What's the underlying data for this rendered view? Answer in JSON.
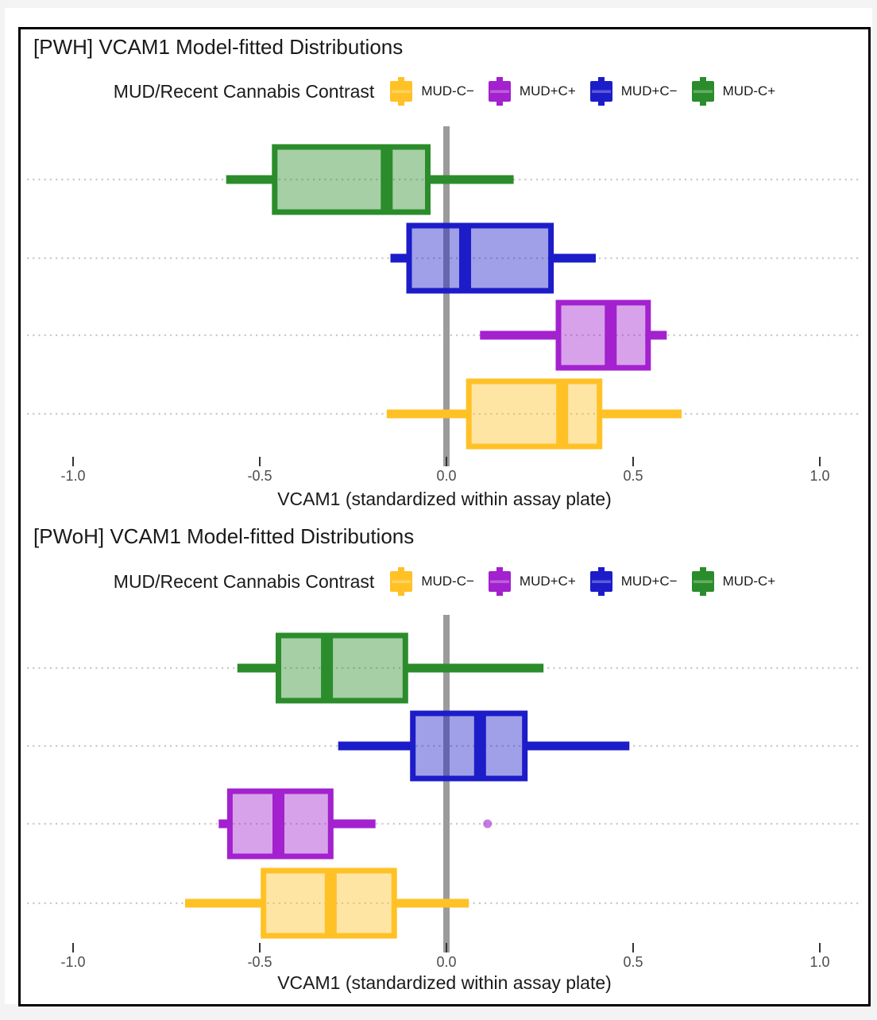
{
  "page": {
    "background": "#f3f3f3"
  },
  "figure": {
    "border_color": "#000000",
    "background": "#ffffff"
  },
  "colors": {
    "gold": {
      "stroke": "#FFC125",
      "fill": "#FFE08A"
    },
    "purple": {
      "stroke": "#A321CE",
      "fill": "#CD85E3"
    },
    "blue": {
      "stroke": "#1C1CC9",
      "fill": "#8787E3"
    },
    "green": {
      "stroke": "#2B8C2B",
      "fill": "#8DC08D"
    },
    "zero_line": "#9B9B9B",
    "gridline": "#CACACA",
    "tick_mark": "#333333",
    "tick_label": "#4D4D4D",
    "text": "#1A1A1A"
  },
  "chart_data": [
    {
      "type": "boxplot",
      "orientation": "horizontal",
      "title": "[PWH] VCAM1 Model-fitted Distributions",
      "legend_title": "MUD/Recent Cannabis Contrast",
      "legend_position": "top-center",
      "legend": [
        {
          "label": "MUD-C−",
          "color": "gold"
        },
        {
          "label": "MUD+C+",
          "color": "purple"
        },
        {
          "label": "MUD+C−",
          "color": "blue"
        },
        {
          "label": "MUD-C+",
          "color": "green"
        }
      ],
      "xlabel": "VCAM1 (standardized within assay plate)",
      "xlim": [
        -1.12,
        1.12
      ],
      "xticks": [
        "-1.0",
        "-0.5",
        "0.0",
        "0.5",
        "1.0"
      ],
      "grid": "dotted-horizontal",
      "reference_line_x": 0,
      "boxes": [
        {
          "group": "MUD-C+",
          "color": "green",
          "whisker_low": -0.59,
          "q1": -0.46,
          "median": -0.16,
          "q3": -0.05,
          "whisker_high": 0.18,
          "outliers": []
        },
        {
          "group": "MUD+C−",
          "color": "blue",
          "whisker_low": -0.15,
          "q1": -0.1,
          "median": 0.05,
          "q3": 0.28,
          "whisker_high": 0.4,
          "outliers": []
        },
        {
          "group": "MUD+C+",
          "color": "purple",
          "whisker_low": 0.09,
          "q1": 0.3,
          "median": 0.44,
          "q3": 0.54,
          "whisker_high": 0.59,
          "outliers": []
        },
        {
          "group": "MUD-C−",
          "color": "gold",
          "whisker_low": -0.16,
          "q1": 0.06,
          "median": 0.31,
          "q3": 0.41,
          "whisker_high": 0.63,
          "outliers": []
        }
      ]
    },
    {
      "type": "boxplot",
      "orientation": "horizontal",
      "title": "[PWoH] VCAM1 Model-fitted Distributions",
      "legend_title": "MUD/Recent Cannabis Contrast",
      "legend_position": "top-center",
      "legend": [
        {
          "label": "MUD-C−",
          "color": "gold"
        },
        {
          "label": "MUD+C+",
          "color": "purple"
        },
        {
          "label": "MUD+C−",
          "color": "blue"
        },
        {
          "label": "MUD-C+",
          "color": "green"
        }
      ],
      "xlabel": "VCAM1 (standardized within assay plate)",
      "xlim": [
        -1.12,
        1.12
      ],
      "xticks": [
        "-1.0",
        "-0.5",
        "0.0",
        "0.5",
        "1.0"
      ],
      "grid": "dotted-horizontal",
      "reference_line_x": 0,
      "boxes": [
        {
          "group": "MUD-C+",
          "color": "green",
          "whisker_low": -0.56,
          "q1": -0.45,
          "median": -0.32,
          "q3": -0.11,
          "whisker_high": 0.26,
          "outliers": []
        },
        {
          "group": "MUD+C−",
          "color": "blue",
          "whisker_low": -0.29,
          "q1": -0.09,
          "median": 0.09,
          "q3": 0.21,
          "whisker_high": 0.49,
          "outliers": []
        },
        {
          "group": "MUD+C+",
          "color": "purple",
          "whisker_low": -0.61,
          "q1": -0.58,
          "median": -0.45,
          "q3": -0.31,
          "whisker_high": -0.19,
          "outliers": [
            0.11
          ]
        },
        {
          "group": "MUD-C−",
          "color": "gold",
          "whisker_low": -0.7,
          "q1": -0.49,
          "median": -0.31,
          "q3": -0.14,
          "whisker_high": 0.06,
          "outliers": []
        }
      ]
    }
  ]
}
